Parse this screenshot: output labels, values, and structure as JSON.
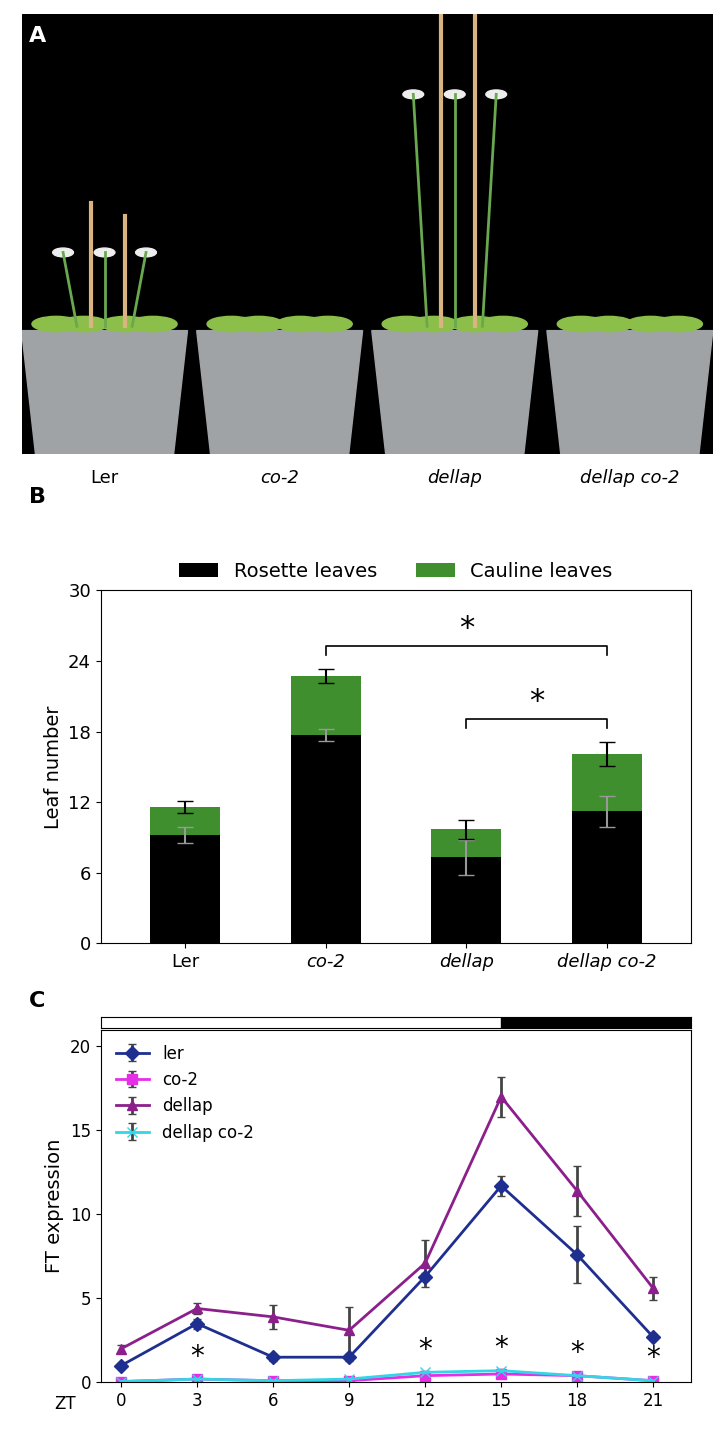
{
  "panel_a": {
    "panel_label": "A",
    "labels": [
      "Ler",
      "co-2",
      "dellap",
      "dellap co-2"
    ]
  },
  "chart_data": [
    {
      "panel_label": "B",
      "type": "bar",
      "stacked": true,
      "categories": [
        "Ler",
        "co-2",
        "dellap",
        "dellap co-2"
      ],
      "series": [
        {
          "name": "Rosette leaves",
          "color": "#000000",
          "values": [
            9.2,
            17.7,
            7.3,
            11.2
          ],
          "errors": [
            0.7,
            0.5,
            1.5,
            1.3
          ]
        },
        {
          "name": "Cauline leaves",
          "color": "#3f8f2f",
          "values": [
            2.4,
            5.0,
            2.4,
            4.9
          ],
          "errors": [
            0.5,
            0.6,
            0.8,
            1.0
          ]
        }
      ],
      "ylabel": "Leaf number",
      "ylim": [
        0,
        30
      ],
      "yticks": [
        0,
        6,
        12,
        18,
        24,
        30
      ],
      "legend": "upper center",
      "comparisons": [
        {
          "from": "co-2",
          "to": "dellap co-2",
          "label": "*"
        },
        {
          "from": "dellap",
          "to": "dellap co-2",
          "label": "*"
        }
      ]
    },
    {
      "panel_label": "C",
      "type": "line",
      "x": [
        0,
        3,
        6,
        9,
        12,
        15,
        18,
        21
      ],
      "xlim": [
        -0.8,
        22.5
      ],
      "xticks": [
        0,
        3,
        6,
        9,
        12,
        15,
        18,
        21
      ],
      "xlabel": "ZT",
      "ylabel": "FT expression",
      "ylim": [
        0,
        21
      ],
      "yticks": [
        0,
        5,
        10,
        15,
        20
      ],
      "legend": "upper left",
      "dark_start": 15,
      "series": [
        {
          "name": "ler",
          "color": "#1f2f8f",
          "marker": "diamond",
          "line_style": "solid",
          "values": [
            1.0,
            3.5,
            1.5,
            1.5,
            6.3,
            11.7,
            7.6,
            2.7
          ],
          "errors": [
            0.1,
            0.3,
            0.2,
            0.2,
            0.2,
            0.6,
            1.7,
            0.2
          ]
        },
        {
          "name": "co-2",
          "color": "#e62ee6",
          "marker": "square",
          "line_style": "solid",
          "values": [
            0.05,
            0.2,
            0.1,
            0.1,
            0.4,
            0.5,
            0.4,
            0.1
          ],
          "errors": [
            0.02,
            0.05,
            0.03,
            0.03,
            0.1,
            0.1,
            0.1,
            0.03
          ]
        },
        {
          "name": "dellap",
          "color": "#8b1f8b",
          "marker": "triangle",
          "line_style": "solid",
          "values": [
            2.0,
            4.4,
            3.9,
            3.1,
            7.1,
            17.0,
            11.4,
            5.6
          ],
          "errors": [
            0.2,
            0.3,
            0.7,
            1.4,
            1.4,
            1.2,
            1.5,
            0.7
          ]
        },
        {
          "name": "dellap co-2",
          "color": "#33d6e6",
          "marker": "x",
          "line_style": "solid",
          "values": [
            0.05,
            0.2,
            0.1,
            0.2,
            0.6,
            0.7,
            0.4,
            0.1
          ],
          "errors": [
            0.02,
            0.05,
            0.03,
            0.05,
            0.1,
            0.1,
            0.1,
            0.03
          ]
        }
      ],
      "significance": {
        "x": [
          3,
          12,
          15,
          18,
          21
        ],
        "label": "*"
      }
    }
  ]
}
